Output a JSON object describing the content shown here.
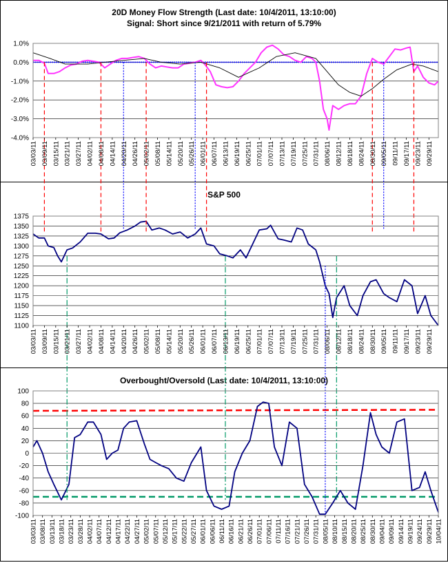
{
  "colors": {
    "money_flow": "#ff33ff",
    "money_flow_ma": "#000000",
    "zero_line": "#0000ff",
    "price": "#000080",
    "sell_marker": "#ff0000",
    "buy_marker": "#0000ff",
    "oversold_marker": "#009966",
    "overbought_line": "#ff0000",
    "oversold_line": "#009966"
  },
  "chart_data": [
    {
      "type": "line",
      "title": "20D Money Flow Strength (Last date: 10/4/2011, 13:10:00)",
      "subtitle": "Signal: Short since  9/21/2011 with return of 5.79%",
      "ylim": [
        -4.0,
        1.0
      ],
      "yticks": [
        "1.0%",
        "0.0%",
        "-1.0%",
        "-2.0%",
        "-3.0%",
        "-4.0%"
      ],
      "ytick_values": [
        1,
        0,
        -1,
        -2,
        -3,
        -4
      ],
      "grid": true,
      "xticks": [
        "03/03/11",
        "03/09/11",
        "03/15/11",
        "03/21/11",
        "03/27/11",
        "04/02/11",
        "04/08/11",
        "04/14/11",
        "04/20/11",
        "04/26/11",
        "05/02/11",
        "05/08/11",
        "05/14/11",
        "05/20/11",
        "05/26/11",
        "06/01/11",
        "06/07/11",
        "06/13/11",
        "06/19/11",
        "06/25/11",
        "07/01/11",
        "07/07/11",
        "07/13/11",
        "07/19/11",
        "07/25/11",
        "07/31/11",
        "08/06/11",
        "08/12/11",
        "08/18/11",
        "08/24/11",
        "08/30/11",
        "09/05/11",
        "09/11/11",
        "09/17/11",
        "09/23/11",
        "09/29/11"
      ],
      "x_start": "03/03/11",
      "x_end": "10/04/11",
      "zero_line": 0,
      "series": [
        {
          "role": "money_flow",
          "x": [
            "03/03/11",
            "03/06/11",
            "03/09/11",
            "03/11/11",
            "03/14/11",
            "03/17/11",
            "03/20/11",
            "03/23/11",
            "03/26/11",
            "03/29/11",
            "04/01/11",
            "04/04/11",
            "04/07/11",
            "04/10/11",
            "04/13/11",
            "04/16/11",
            "04/19/11",
            "04/22/11",
            "04/25/11",
            "04/28/11",
            "05/01/11",
            "05/04/11",
            "05/07/11",
            "05/10/11",
            "05/13/11",
            "05/16/11",
            "05/19/11",
            "05/22/11",
            "05/25/11",
            "05/28/11",
            "05/31/11",
            "06/02/11",
            "06/05/11",
            "06/08/11",
            "06/11/11",
            "06/14/11",
            "06/17/11",
            "06/20/11",
            "06/23/11",
            "06/26/11",
            "06/29/11",
            "07/02/11",
            "07/05/11",
            "07/08/11",
            "07/11/11",
            "07/14/11",
            "07/17/11",
            "07/20/11",
            "07/23/11",
            "07/26/11",
            "07/29/11",
            "07/31/11",
            "08/02/11",
            "08/04/11",
            "08/06/11",
            "08/07/11",
            "08/09/11",
            "08/12/11",
            "08/15/11",
            "08/18/11",
            "08/21/11",
            "08/24/11",
            "08/27/11",
            "08/30/11",
            "09/02/11",
            "09/05/11",
            "09/08/11",
            "09/11/11",
            "09/14/11",
            "09/17/11",
            "09/19/11",
            "09/21/11",
            "09/23/11",
            "09/26/11",
            "09/29/11",
            "10/02/11",
            "10/04/11"
          ],
          "values": [
            0.1,
            0.1,
            -0.05,
            -0.6,
            -0.6,
            -0.5,
            -0.3,
            -0.15,
            -0.1,
            0.05,
            0.1,
            0.05,
            0.0,
            -0.3,
            -0.1,
            0.1,
            0.2,
            0.2,
            0.25,
            0.3,
            0.2,
            -0.1,
            -0.3,
            -0.2,
            -0.25,
            -0.3,
            -0.3,
            -0.1,
            -0.05,
            0.0,
            0.1,
            -0.1,
            -0.5,
            -1.2,
            -1.3,
            -1.35,
            -1.3,
            -1.0,
            -0.6,
            -0.3,
            0.0,
            0.5,
            0.8,
            0.9,
            0.7,
            0.4,
            0.3,
            0.1,
            0.0,
            0.3,
            0.2,
            0.0,
            -1.0,
            -2.5,
            -3.0,
            -3.6,
            -2.3,
            -2.5,
            -2.3,
            -2.2,
            -2.2,
            -1.8,
            -0.6,
            0.2,
            0.0,
            -0.1,
            0.3,
            0.7,
            0.65,
            0.75,
            0.8,
            -0.5,
            -0.2,
            -0.8,
            -1.1,
            -1.2,
            -1.0
          ]
        },
        {
          "role": "money_flow_ma",
          "x": [
            "03/03/11",
            "03/12/11",
            "03/20/11",
            "04/01/11",
            "04/10/11",
            "04/20/11",
            "05/01/11",
            "05/10/11",
            "05/20/11",
            "05/31/11",
            "06/10/11",
            "06/20/11",
            "07/01/11",
            "07/10/11",
            "07/20/11",
            "07/31/11",
            "08/06/11",
            "08/12/11",
            "08/18/11",
            "08/24/11",
            "08/30/11",
            "09/05/11",
            "09/12/11",
            "09/20/11",
            "09/26/11",
            "10/04/11"
          ],
          "values": [
            0.5,
            0.2,
            -0.1,
            -0.1,
            0.0,
            0.1,
            0.2,
            0.0,
            -0.1,
            0.0,
            -0.3,
            -0.8,
            -0.3,
            0.3,
            0.5,
            0.2,
            -0.5,
            -1.2,
            -1.6,
            -1.8,
            -1.4,
            -0.9,
            -0.4,
            -0.1,
            -0.2,
            -0.5
          ]
        }
      ]
    },
    {
      "type": "line",
      "title": "S&P 500",
      "ylim": [
        1100,
        1375
      ],
      "yticks": [
        "1375",
        "1350",
        "1325",
        "1300",
        "1275",
        "1250",
        "1225",
        "1200",
        "1175",
        "1150",
        "1125",
        "1100"
      ],
      "ytick_values": [
        1375,
        1350,
        1325,
        1300,
        1275,
        1250,
        1225,
        1200,
        1175,
        1150,
        1125,
        1100
      ],
      "grid": true,
      "xticks": [
        "03/03/11",
        "03/09/11",
        "03/15/11",
        "03/21/11",
        "03/27/11",
        "04/02/11",
        "04/08/11",
        "04/14/11",
        "04/20/11",
        "04/26/11",
        "05/02/11",
        "05/08/11",
        "05/14/11",
        "05/20/11",
        "05/26/11",
        "06/01/11",
        "06/07/11",
        "06/13/11",
        "06/19/11",
        "06/25/11",
        "07/01/11",
        "07/07/11",
        "07/13/11",
        "07/19/11",
        "07/25/11",
        "07/31/11",
        "08/06/11",
        "08/12/11",
        "08/18/11",
        "08/24/11",
        "08/30/11",
        "09/05/11",
        "09/11/11",
        "09/17/11",
        "09/23/11",
        "09/29/11"
      ],
      "x_start": "03/03/11",
      "x_end": "10/04/11",
      "series": [
        {
          "role": "price",
          "x": [
            "03/03/11",
            "03/06/11",
            "03/09/11",
            "03/11/11",
            "03/14/11",
            "03/16/11",
            "03/18/11",
            "03/21/11",
            "03/24/11",
            "03/28/11",
            "04/01/11",
            "04/05/11",
            "04/08/11",
            "04/12/11",
            "04/15/11",
            "04/18/11",
            "04/22/11",
            "04/26/11",
            "04/29/11",
            "05/02/11",
            "05/05/11",
            "05/09/11",
            "05/12/11",
            "05/16/11",
            "05/20/11",
            "05/24/11",
            "05/28/11",
            "05/31/11",
            "06/03/11",
            "06/07/11",
            "06/10/11",
            "06/14/11",
            "06/17/11",
            "06/21/11",
            "06/24/11",
            "06/28/11",
            "07/01/11",
            "07/05/11",
            "07/07/11",
            "07/11/11",
            "07/14/11",
            "07/18/11",
            "07/21/11",
            "07/24/11",
            "07/27/11",
            "07/31/11",
            "08/02/11",
            "08/05/11",
            "08/07/11",
            "08/09/11",
            "08/11/11",
            "08/15/11",
            "08/18/11",
            "08/22/11",
            "08/25/11",
            "08/29/11",
            "09/01/11",
            "09/05/11",
            "09/08/11",
            "09/12/11",
            "09/16/11",
            "09/20/11",
            "09/23/11",
            "09/27/11",
            "09/30/11",
            "10/04/11"
          ],
          "values": [
            1330,
            1320,
            1320,
            1300,
            1296,
            1275,
            1260,
            1290,
            1295,
            1310,
            1332,
            1332,
            1330,
            1318,
            1320,
            1333,
            1340,
            1350,
            1360,
            1362,
            1340,
            1345,
            1340,
            1330,
            1335,
            1320,
            1330,
            1345,
            1305,
            1300,
            1280,
            1275,
            1270,
            1290,
            1270,
            1310,
            1340,
            1343,
            1352,
            1318,
            1315,
            1310,
            1345,
            1340,
            1305,
            1290,
            1260,
            1200,
            1180,
            1120,
            1170,
            1200,
            1150,
            1125,
            1175,
            1210,
            1215,
            1180,
            1170,
            1160,
            1215,
            1200,
            1130,
            1175,
            1125,
            1100
          ]
        }
      ]
    },
    {
      "type": "line",
      "title": "Overbought/Oversold (Last date: 10/4/2011, 13:10:00)",
      "ylim": [
        -100,
        100
      ],
      "yticks": [
        "100",
        "80",
        "60",
        "40",
        "20",
        "0",
        "-20",
        "-40",
        "-60",
        "-80",
        "-100"
      ],
      "ytick_values": [
        100,
        80,
        60,
        40,
        20,
        0,
        -20,
        -40,
        -60,
        -80,
        -100
      ],
      "grid": true,
      "xticks": [
        "03/03/11",
        "03/08/11",
        "03/13/11",
        "03/18/11",
        "03/23/11",
        "03/28/11",
        "04/02/11",
        "04/07/11",
        "04/12/11",
        "04/17/11",
        "04/22/11",
        "04/27/11",
        "05/02/11",
        "05/07/11",
        "05/12/11",
        "05/17/11",
        "05/22/11",
        "05/27/11",
        "06/01/11",
        "06/06/11",
        "06/11/11",
        "06/16/11",
        "06/21/11",
        "06/26/11",
        "07/01/11",
        "07/06/11",
        "07/11/11",
        "07/16/11",
        "07/21/11",
        "07/26/11",
        "07/31/11",
        "08/05/11",
        "08/10/11",
        "08/15/11",
        "08/20/11",
        "08/25/11",
        "08/30/11",
        "09/04/11",
        "09/09/11",
        "09/14/11",
        "09/19/11",
        "09/24/11",
        "09/29/11",
        "10/04/11"
      ],
      "x_start": "03/03/11",
      "x_end": "10/04/11",
      "overbought_level": 68,
      "oversold_level": -70,
      "series": [
        {
          "role": "oscillator",
          "x": [
            "03/03/11",
            "03/05/11",
            "03/08/11",
            "03/11/11",
            "03/14/11",
            "03/18/11",
            "03/22/11",
            "03/25/11",
            "03/28/11",
            "04/01/11",
            "04/04/11",
            "04/08/11",
            "04/11/11",
            "04/14/11",
            "04/17/11",
            "04/20/11",
            "04/23/11",
            "04/27/11",
            "05/01/11",
            "05/04/11",
            "05/07/11",
            "05/10/11",
            "05/14/11",
            "05/18/11",
            "05/22/11",
            "05/26/11",
            "05/31/11",
            "06/03/11",
            "06/07/11",
            "06/11/11",
            "06/15/11",
            "06/18/11",
            "06/22/11",
            "06/26/11",
            "06/30/11",
            "07/03/11",
            "07/06/11",
            "07/09/11",
            "07/13/11",
            "07/17/11",
            "07/21/11",
            "07/25/11",
            "07/29/11",
            "08/02/11",
            "08/05/11",
            "08/09/11",
            "08/13/11",
            "08/17/11",
            "08/21/11",
            "08/25/11",
            "08/29/11",
            "09/01/11",
            "09/04/11",
            "09/08/11",
            "09/12/11",
            "09/16/11",
            "09/20/11",
            "09/24/11",
            "09/27/11",
            "09/30/11",
            "10/04/11"
          ],
          "values": [
            10,
            20,
            0,
            -30,
            -50,
            -75,
            -50,
            25,
            30,
            50,
            50,
            30,
            -10,
            0,
            5,
            40,
            50,
            52,
            15,
            -10,
            -15,
            -20,
            -25,
            -40,
            -45,
            -15,
            10,
            -60,
            -85,
            -90,
            -85,
            -30,
            0,
            20,
            75,
            82,
            80,
            10,
            -20,
            50,
            40,
            -50,
            -70,
            -98,
            -98,
            -80,
            -60,
            -80,
            -90,
            -20,
            65,
            30,
            10,
            0,
            50,
            55,
            -60,
            -55,
            -30,
            -60,
            -95
          ]
        }
      ]
    }
  ]
}
